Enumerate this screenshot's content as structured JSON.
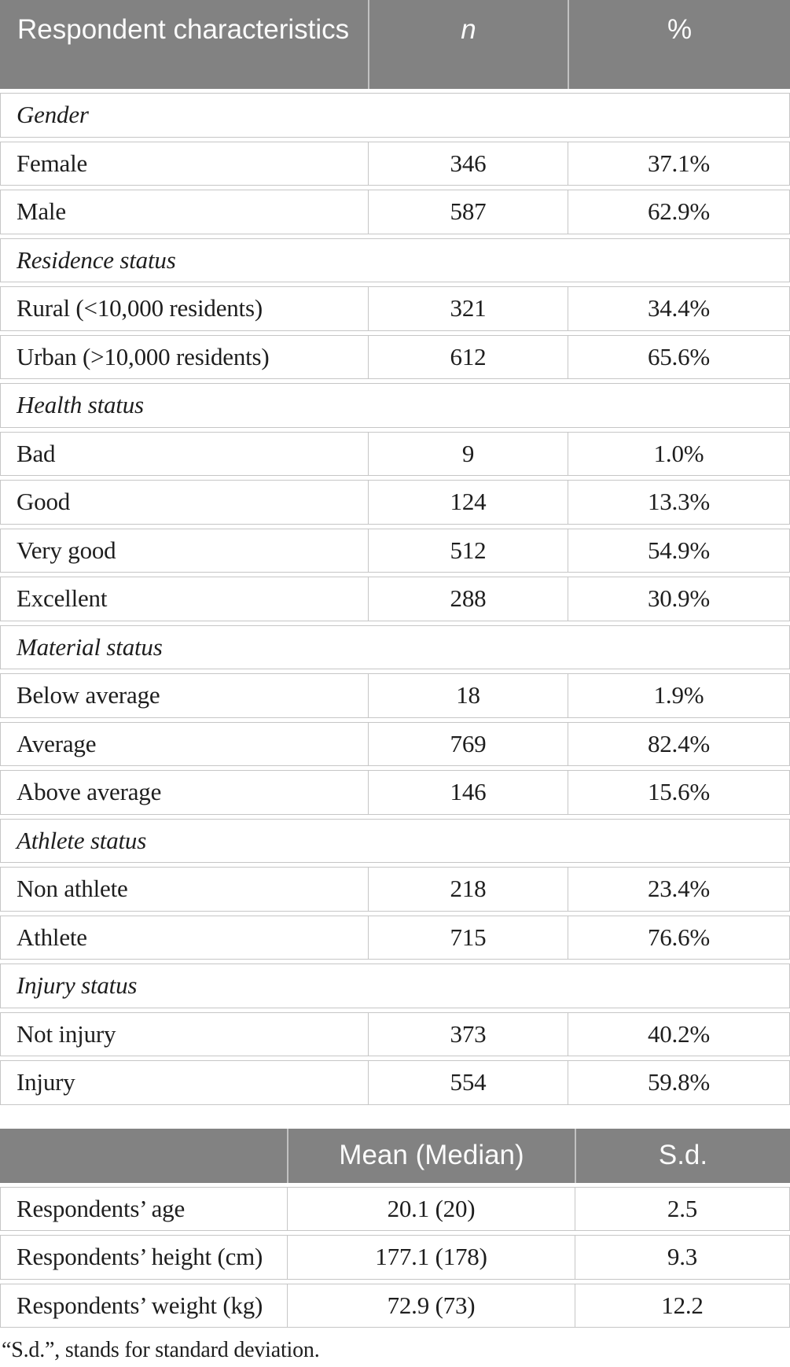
{
  "colors": {
    "header_bg": "#828282",
    "header_text": "#fbfbfb",
    "border": "#c6c6c6",
    "text": "#1e1e1e",
    "page_bg": "#ffffff"
  },
  "table1": {
    "header": {
      "title": "Respondent characteristics",
      "n": "n",
      "pct": "%"
    },
    "rows": [
      {
        "section": "Gender"
      },
      {
        "label": "Female",
        "n": "346",
        "pct": "37.1%"
      },
      {
        "label": "Male",
        "n": "587",
        "pct": "62.9%"
      },
      {
        "section": "Residence status"
      },
      {
        "label": "Rural (<10,000 residents)",
        "n": "321",
        "pct": "34.4%"
      },
      {
        "label": "Urban (>10,000 residents)",
        "n": "612",
        "pct": "65.6%"
      },
      {
        "section": "Health status"
      },
      {
        "label": "Bad",
        "n": "9",
        "pct": "1.0%"
      },
      {
        "label": "Good",
        "n": "124",
        "pct": "13.3%"
      },
      {
        "label": "Very good",
        "n": "512",
        "pct": "54.9%"
      },
      {
        "label": "Excellent",
        "n": "288",
        "pct": "30.9%"
      },
      {
        "section": "Material status"
      },
      {
        "label": "Below average",
        "n": "18",
        "pct": "1.9%"
      },
      {
        "label": "Average",
        "n": "769",
        "pct": "82.4%"
      },
      {
        "label": "Above average",
        "n": "146",
        "pct": "15.6%"
      },
      {
        "section": "Athlete status"
      },
      {
        "label": "Non athlete",
        "n": "218",
        "pct": "23.4%"
      },
      {
        "label": "Athlete",
        "n": "715",
        "pct": "76.6%"
      },
      {
        "section": "Injury status"
      },
      {
        "label": "Not injury",
        "n": "373",
        "pct": "40.2%"
      },
      {
        "label": "Injury",
        "n": "554",
        "pct": "59.8%"
      }
    ]
  },
  "table2": {
    "header": {
      "blank": "",
      "mean": "Mean (Median)",
      "sd": "S.d."
    },
    "rows": [
      {
        "label": "Respondents’ age",
        "mean": "20.1 (20)",
        "sd": "2.5"
      },
      {
        "label": "Respondents’ height (cm)",
        "mean": "177.1 (178)",
        "sd": "9.3"
      },
      {
        "label": "Respondents’ weight (kg)",
        "mean": "72.9 (73)",
        "sd": "12.2"
      }
    ]
  },
  "footnote": "“S.d.”, stands for standard deviation."
}
